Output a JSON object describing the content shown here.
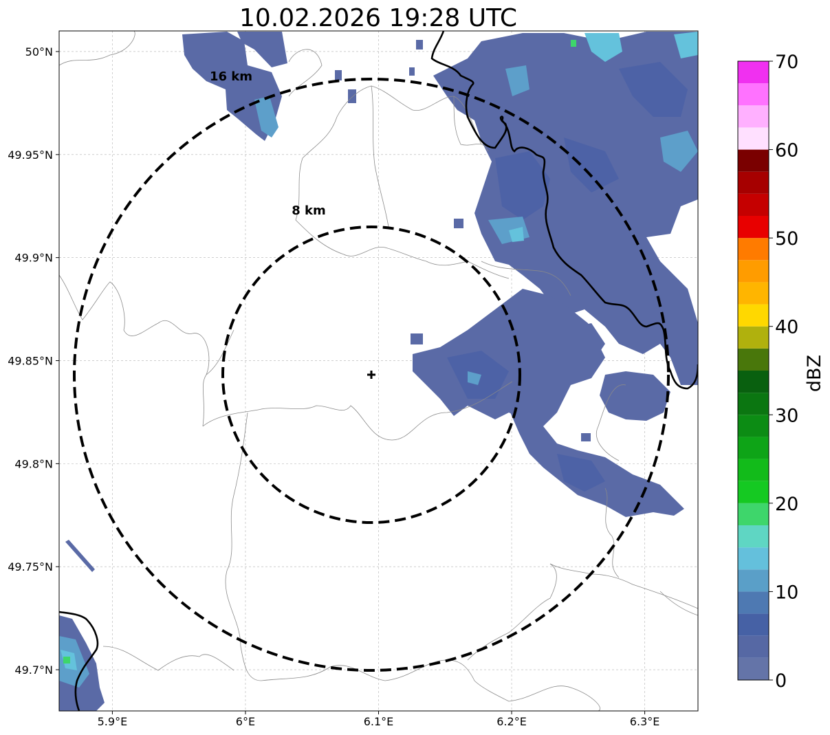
{
  "title": "10.02.2026 19:28 UTC",
  "colors": {
    "dbz_bins": [
      "#6474a8",
      "#5668a4",
      "#4661a5",
      "#4e79b2",
      "#5a9fc8",
      "#64c0dc",
      "#5fd6c3",
      "#3ed66b",
      "#15c922",
      "#12bb1a",
      "#0ea417",
      "#0c8c14",
      "#0b7611",
      "#09600f",
      "#49770b",
      "#b0b10d",
      "#ffd800",
      "#ffb500",
      "#ff9c00",
      "#ff7b00",
      "#e80000",
      "#c50000",
      "#a60000",
      "#7a0000",
      "#ffe0ff",
      "#ffb0ff",
      "#ff72ff",
      "#f030f0"
    ],
    "radar_dark": "#5a6aa6",
    "radar_mid": "#4d62a6",
    "radar_light": "#5d9fca",
    "radar_cyan": "#64c2dc",
    "radar_green": "#3ed66b"
  },
  "map": {
    "extent": {
      "lon_min": 5.86,
      "lon_max": 6.34,
      "lat_min": 49.68,
      "lat_max": 50.01
    },
    "x_ticks": [
      {
        "value": 5.9,
        "label": "5.9°E"
      },
      {
        "value": 6.0,
        "label": "6°E"
      },
      {
        "value": 6.1,
        "label": "6.1°E"
      },
      {
        "value": 6.2,
        "label": "6.2°E"
      },
      {
        "value": 6.3,
        "label": "6.3°E"
      }
    ],
    "y_ticks": [
      {
        "value": 50.0,
        "label": "50°N"
      },
      {
        "value": 49.95,
        "label": "49.95°N"
      },
      {
        "value": 49.9,
        "label": "49.9°N"
      },
      {
        "value": 49.85,
        "label": "49.85°N"
      },
      {
        "value": 49.8,
        "label": "49.8°N"
      },
      {
        "value": 49.75,
        "label": "49.75°N"
      },
      {
        "value": 49.7,
        "label": "49.7°N"
      }
    ],
    "radar_site": {
      "lon": 6.094,
      "lat": 49.843
    },
    "range_rings": [
      {
        "radius_km": 8,
        "label": "8 km"
      },
      {
        "radius_km": 16,
        "label": "16 km"
      }
    ]
  },
  "colorbar": {
    "label": "dBZ",
    "min": 0,
    "max": 70,
    "step": 2.5,
    "ticks": [
      {
        "value": 0,
        "label": "0"
      },
      {
        "value": 10,
        "label": "10"
      },
      {
        "value": 20,
        "label": "20"
      },
      {
        "value": 30,
        "label": "30"
      },
      {
        "value": 40,
        "label": "40"
      },
      {
        "value": 50,
        "label": "50"
      },
      {
        "value": 60,
        "label": "60"
      },
      {
        "value": 70,
        "label": "70"
      }
    ]
  }
}
